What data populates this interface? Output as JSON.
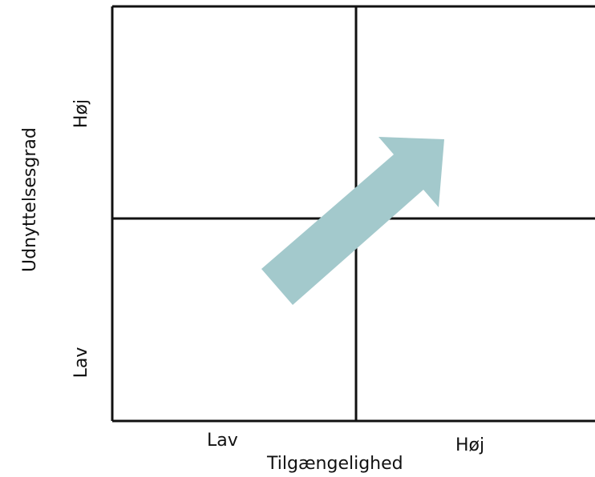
{
  "axes": {
    "y_title": "Udnyttelsesgrad",
    "x_title": "Tilgængelighed",
    "y_high": "Høj",
    "y_low": "Lav",
    "x_low": "Lav",
    "x_high": "Høj"
  },
  "colors": {
    "arrow": "#a3c9cc",
    "lines": "#111111",
    "background": "#ffffff"
  }
}
